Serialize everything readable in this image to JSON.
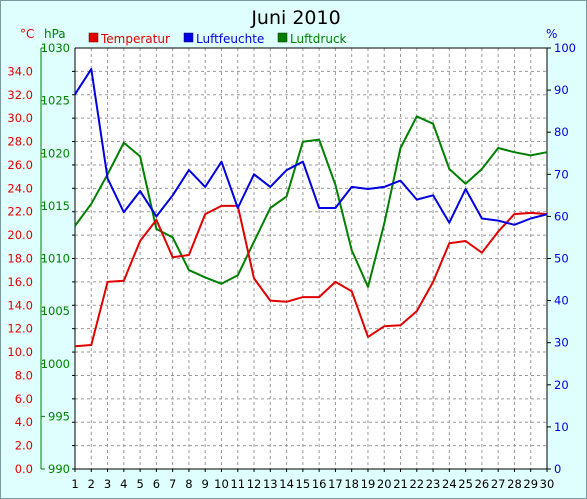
{
  "chart_data": {
    "type": "line",
    "title": "Juni 2010",
    "x": [
      1,
      2,
      3,
      4,
      5,
      6,
      7,
      8,
      9,
      10,
      11,
      12,
      13,
      14,
      15,
      16,
      17,
      18,
      19,
      20,
      21,
      22,
      23,
      24,
      25,
      26,
      27,
      28,
      29,
      30
    ],
    "x_ticks": [
      "1",
      "2",
      "3",
      "4",
      "5",
      "6",
      "7",
      "8",
      "9",
      "10",
      "11",
      "12",
      "13",
      "14",
      "15",
      "16",
      "17",
      "18",
      "19",
      "20",
      "21",
      "22",
      "23",
      "24",
      "25",
      "26",
      "27",
      "28",
      "29",
      "30"
    ],
    "axes": {
      "temp": {
        "unit": "°C",
        "ticks": [
          "0.0",
          "2.0",
          "4.0",
          "6.0",
          "8.0",
          "10.0",
          "12.0",
          "14.0",
          "16.0",
          "18.0",
          "20.0",
          "22.0",
          "24.0",
          "26.0",
          "28.0",
          "30.0",
          "32.0",
          "34.0"
        ],
        "range": [
          0,
          36
        ],
        "color": "#e00000"
      },
      "pressure": {
        "unit": "hPa",
        "ticks": [
          "990",
          "995",
          "1000",
          "1005",
          "1010",
          "1015",
          "1020",
          "1025",
          "1030"
        ],
        "range": [
          990,
          1030
        ],
        "color": "#008000"
      },
      "humidity": {
        "unit": "%",
        "ticks": [
          "0",
          "10",
          "20",
          "30",
          "40",
          "50",
          "60",
          "70",
          "80",
          "90",
          "100"
        ],
        "range": [
          0,
          100
        ],
        "color": "#0000e0"
      }
    },
    "series": [
      {
        "name": "Temperatur",
        "axis": "temp",
        "color": "#e00000",
        "values": [
          10.5,
          10.6,
          16.0,
          16.1,
          19.5,
          21.3,
          18.1,
          18.3,
          21.8,
          22.5,
          22.5,
          16.3,
          14.4,
          14.3,
          14.7,
          14.7,
          16.0,
          15.2,
          11.3,
          12.2,
          12.3,
          13.5,
          16.0,
          19.3,
          19.5,
          18.5,
          20.3,
          21.8,
          21.9,
          21.8
        ]
      },
      {
        "name": "Luftfeuchte",
        "axis": "humidity",
        "color": "#0000e0",
        "values": [
          89,
          95,
          69,
          61,
          66,
          60,
          65,
          71,
          67,
          73,
          62,
          70,
          67,
          71,
          73,
          62,
          62,
          67,
          66.5,
          67,
          68.5,
          64,
          65,
          58.5,
          66.5,
          59.5,
          59,
          58,
          59.5,
          60.5
        ]
      },
      {
        "name": "Luftdruck",
        "axis": "pressure",
        "color": "#008000",
        "values": [
          1013.1,
          1015.2,
          1018.0,
          1021.0,
          1019.7,
          1012.8,
          1012.0,
          1008.9,
          1008.2,
          1007.6,
          1008.4,
          1011.6,
          1014.8,
          1015.9,
          1021.1,
          1021.3,
          1017.0,
          1010.8,
          1007.3,
          1013.3,
          1020.5,
          1023.5,
          1022.8,
          1018.5,
          1017.1,
          1018.5,
          1020.5,
          1020.1,
          1019.8,
          1020.1
        ]
      }
    ],
    "grid": true,
    "legend": "top"
  }
}
